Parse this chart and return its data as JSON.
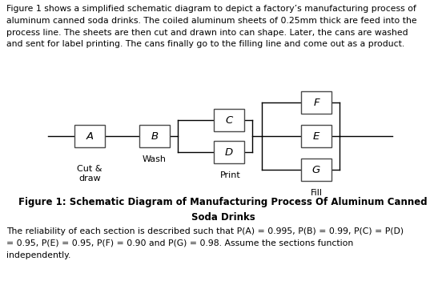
{
  "background_color": "#ffffff",
  "text_color": "#000000",
  "title_line1": "Figure 1: Schematic Diagram of Manufacturing Process Of Aluminum Canned",
  "title_line2": "Soda Drinks",
  "paragraph1": "Figure 1 shows a simplified schematic diagram to depict a factory’s manufacturing process of\naluminum canned soda drinks. The coiled aluminum sheets of 0.25mm thick are feed into the\nprocess line. The sheets are then cut and drawn into can shape. Later, the cans are washed\nand sent for label printing. The cans finally go to the filling line and come out as a product.",
  "paragraph2": "The reliability of each section is described such that P(A) = 0.995, P(B) = 0.99, P(C) = P(D)\n= 0.95, P(E) = 0.95, P(F) = 0.90 and P(G) = 0.98. Assume the sections function\nindependently.",
  "font_size_body": 7.8,
  "font_size_box_label": 9.5,
  "font_size_section_label": 8.0,
  "font_size_title": 8.5,
  "line_color": "#000000",
  "box_color": "#ffffff",
  "box_edge_color": "#4a4a4a",
  "lw": 1.0
}
